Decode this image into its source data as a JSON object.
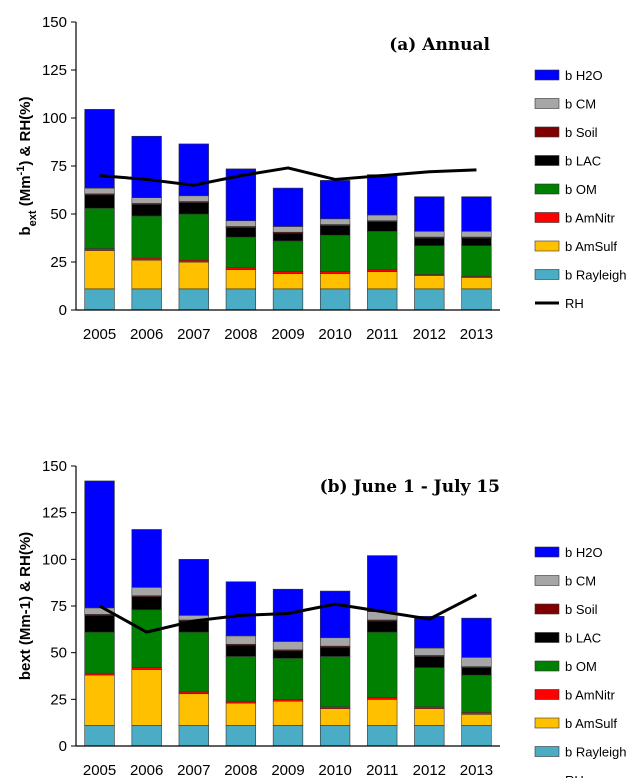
{
  "chart_data": [
    {
      "type": "bar",
      "subtype": "stacked-bar-with-line",
      "title": "(a) Annual",
      "ylabel": "b_ext (Mm-1) & RH(%)",
      "ylabel_parts": {
        "b": "b",
        "sub": "ext",
        "mid": " (Mm",
        "sup": "-1",
        "end": ") & RH(%)"
      },
      "ylim": [
        0,
        150
      ],
      "yticks": [
        0,
        25,
        50,
        75,
        100,
        125,
        150
      ],
      "categories": [
        "2005",
        "2006",
        "2007",
        "2008",
        "2009",
        "2010",
        "2011",
        "2012",
        "2013"
      ],
      "series": [
        {
          "name": "b Rayleigh",
          "color": "#4bacc6",
          "values": [
            11,
            11,
            11,
            11,
            11,
            11,
            11,
            11,
            11
          ]
        },
        {
          "name": "b AmSulf",
          "color": "#ffc000",
          "values": [
            20,
            15,
            14,
            10,
            8,
            8,
            9,
            7,
            6
          ]
        },
        {
          "name": "b AmNitr",
          "color": "#ff0000",
          "values": [
            1,
            1,
            1,
            1,
            1,
            1,
            1,
            0.5,
            0.5
          ]
        },
        {
          "name": "b OM",
          "color": "#008000",
          "values": [
            21,
            22,
            24,
            16,
            16,
            19,
            20,
            15,
            16
          ]
        },
        {
          "name": "b LAC",
          "color": "#000000",
          "values": [
            7,
            6,
            6,
            5,
            4,
            5,
            5,
            4,
            4
          ]
        },
        {
          "name": "b Soil",
          "color": "#800000",
          "values": [
            0.5,
            0.5,
            0.5,
            0.5,
            0.5,
            0.5,
            0.5,
            0.5,
            0.5
          ]
        },
        {
          "name": "b CM",
          "color": "#a6a6a6",
          "values": [
            3,
            3,
            3,
            3,
            3,
            3,
            3,
            3,
            3
          ]
        },
        {
          "name": "b H2O",
          "color": "#0000ff",
          "values": [
            41,
            32,
            27,
            27,
            20,
            20,
            21,
            18,
            18
          ]
        }
      ],
      "line": {
        "name": "RH",
        "color": "#000000",
        "values": [
          70,
          68,
          65,
          70,
          74,
          68,
          70,
          72,
          73
        ]
      },
      "legend_position": "right"
    },
    {
      "type": "bar",
      "subtype": "stacked-bar-with-line",
      "title": "(b) June 1 - July 15",
      "ylabel": "bext (Mm-1) & RH(%)",
      "ylim": [
        0,
        150
      ],
      "yticks": [
        0,
        25,
        50,
        75,
        100,
        125,
        150
      ],
      "categories": [
        "2005",
        "2006",
        "2007",
        "2008",
        "2009",
        "2010",
        "2011",
        "2012",
        "2013"
      ],
      "series": [
        {
          "name": "b Rayleigh",
          "color": "#4bacc6",
          "values": [
            11,
            11,
            11,
            11,
            11,
            11,
            11,
            11,
            11
          ]
        },
        {
          "name": "b AmSulf",
          "color": "#ffc000",
          "values": [
            27,
            30,
            17,
            12,
            13,
            9,
            14,
            9,
            6
          ]
        },
        {
          "name": "b AmNitr",
          "color": "#ff0000",
          "values": [
            1,
            1,
            1,
            1,
            1,
            1,
            1,
            1,
            1
          ]
        },
        {
          "name": "b OM",
          "color": "#008000",
          "values": [
            22,
            31,
            32,
            24,
            22,
            27,
            35,
            21,
            20
          ]
        },
        {
          "name": "b LAC",
          "color": "#000000",
          "values": [
            9,
            7,
            6,
            6,
            4,
            5,
            6,
            6,
            4
          ]
        },
        {
          "name": "b Soil",
          "color": "#800000",
          "values": [
            0.5,
            0.5,
            0.5,
            0.5,
            0.5,
            0.5,
            0.5,
            0.5,
            0.5
          ]
        },
        {
          "name": "b CM",
          "color": "#a6a6a6",
          "values": [
            3.5,
            4.5,
            2.5,
            4.5,
            4.5,
            4.5,
            4.5,
            4,
            5
          ]
        },
        {
          "name": "b H2O",
          "color": "#0000ff",
          "values": [
            68,
            31,
            30,
            29,
            28,
            25,
            30,
            17,
            21
          ]
        }
      ],
      "line": {
        "name": "RH",
        "color": "#000000",
        "values": [
          75,
          61,
          67,
          70,
          71,
          76,
          72,
          68,
          81
        ]
      },
      "legend_position": "right"
    }
  ]
}
